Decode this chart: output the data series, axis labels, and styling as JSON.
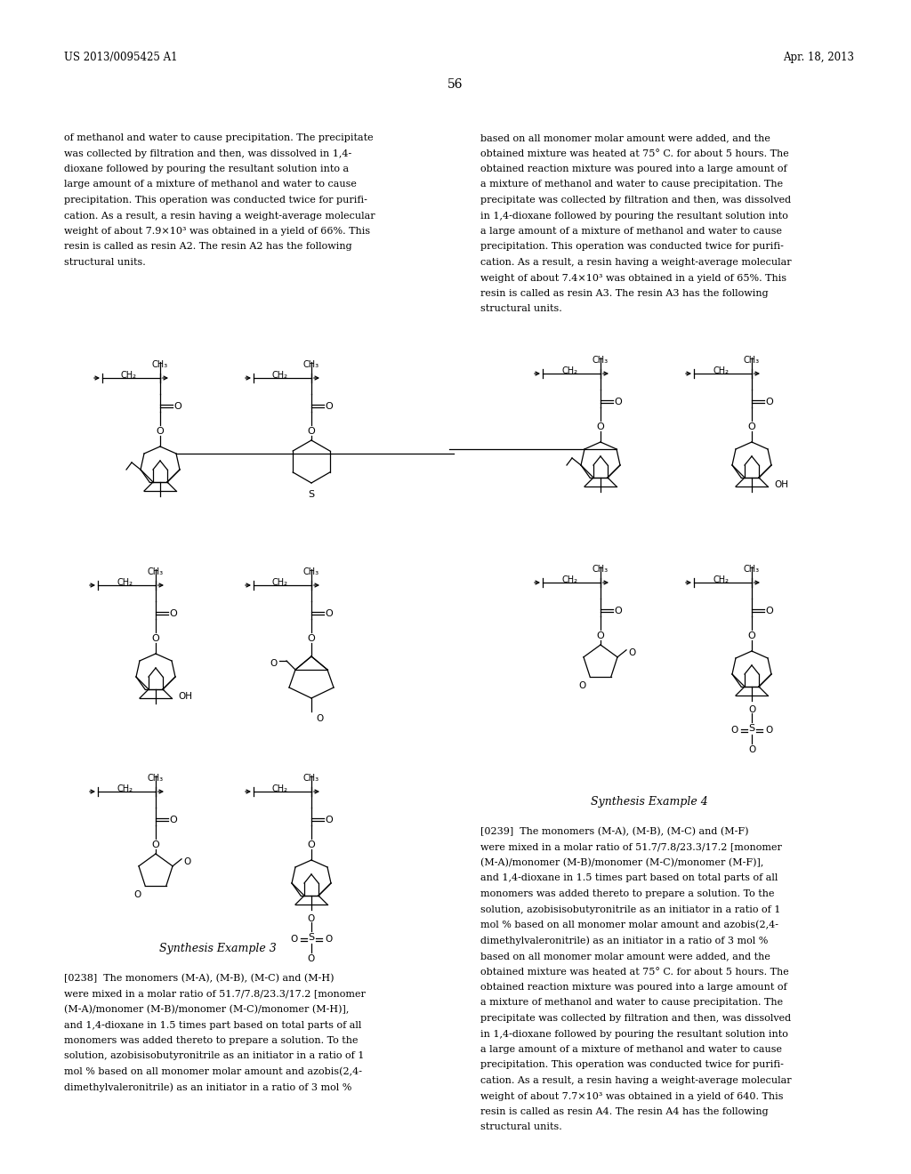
{
  "page_width": 10.24,
  "page_height": 13.2,
  "background_color": "#ffffff",
  "header_left": "US 2013/0095425 A1",
  "header_right": "Apr. 18, 2013",
  "page_number": "56",
  "left_col_text": [
    "of methanol and water to cause precipitation. The precipitate",
    "was collected by filtration and then, was dissolved in 1,4-",
    "dioxane followed by pouring the resultant solution into a",
    "large amount of a mixture of methanol and water to cause",
    "precipitation. This operation was conducted twice for purifi-",
    "cation. As a result, a resin having a weight-average molecular",
    "weight of about 7.9×10³ was obtained in a yield of 66%. This",
    "resin is called as resin A2. The resin A2 has the following",
    "structural units."
  ],
  "right_col_text": [
    "based on all monomer molar amount were added, and the",
    "obtained mixture was heated at 75° C. for about 5 hours. The",
    "obtained reaction mixture was poured into a large amount of",
    "a mixture of methanol and water to cause precipitation. The",
    "precipitate was collected by filtration and then, was dissolved",
    "in 1,4-dioxane followed by pouring the resultant solution into",
    "a large amount of a mixture of methanol and water to cause",
    "precipitation. This operation was conducted twice for purifi-",
    "cation. As a result, a resin having a weight-average molecular",
    "weight of about 7.4×10³ was obtained in a yield of 65%. This",
    "resin is called as resin A3. The resin A3 has the following",
    "structural units."
  ],
  "synthesis_example_3": "Synthesis Example 3",
  "synthesis_example_4": "Synthesis Example 4",
  "bottom_left_text": [
    "[0238]  The monomers (M-A), (M-B), (M-C) and (M-H)",
    "were mixed in a molar ratio of 51.7/7.8/23.3/17.2 [monomer",
    "(M-A)/monomer (M-B)/monomer (M-C)/monomer (M-H)],",
    "and 1,4-dioxane in 1.5 times part based on total parts of all",
    "monomers was added thereto to prepare a solution. To the",
    "solution, azobisisobutyronitrile as an initiator in a ratio of 1",
    "mol % based on all monomer molar amount and azobis(2,4-",
    "dimethylvaleronitrile) as an initiator in a ratio of 3 mol %"
  ],
  "bottom_right_text": [
    "[0239]  The monomers (M-A), (M-B), (M-C) and (M-F)",
    "were mixed in a molar ratio of 51.7/7.8/23.3/17.2 [monomer",
    "(M-A)/monomer (M-B)/monomer (M-C)/monomer (M-F)],",
    "and 1,4-dioxane in 1.5 times part based on total parts of all",
    "monomers was added thereto to prepare a solution. To the",
    "solution, azobisisobutyronitrile as an initiator in a ratio of 1",
    "mol % based on all monomer molar amount and azobis(2,4-",
    "dimethylvaleronitrile) as an initiator in a ratio of 3 mol %",
    "based on all monomer molar amount were added, and the",
    "obtained mixture was heated at 75° C. for about 5 hours. The",
    "obtained reaction mixture was poured into a large amount of",
    "a mixture of methanol and water to cause precipitation. The",
    "precipitate was collected by filtration and then, was dissolved",
    "in 1,4-dioxane followed by pouring the resultant solution into",
    "a large amount of a mixture of methanol and water to cause",
    "precipitation. This operation was conducted twice for purifi-",
    "cation. As a result, a resin having a weight-average molecular",
    "weight of about 7.7×10³ was obtained in a yield of 640. This",
    "resin is called as resin A4. The resin A4 has the following",
    "structural units."
  ]
}
